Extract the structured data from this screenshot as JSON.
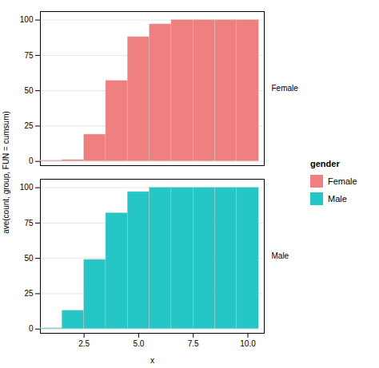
{
  "chart_data": {
    "type": "bar",
    "x": [
      1.0,
      2.0,
      3.0,
      4.0,
      5.0,
      6.0,
      7.0,
      8.0,
      9.0,
      10.0
    ],
    "series": [
      {
        "name": "Female",
        "color": "#F08080",
        "values": [
          0.5,
          1.0,
          19.0,
          57.0,
          88.0,
          97.0,
          100.0,
          100.0,
          100.0,
          100.0
        ]
      },
      {
        "name": "Male",
        "color": "#26C6C6",
        "values": [
          0.5,
          13.0,
          49.0,
          82.0,
          97.0,
          100.0,
          100.0,
          100.0,
          100.0,
          100.0
        ]
      }
    ],
    "xlabel": "x",
    "ylabel": "ave(count, group, FUN = cumsum)",
    "legend_title": "gender",
    "xlim": [
      0.5,
      10.75
    ],
    "xticks": [
      2.5,
      {
        "value": 5.0,
        "label": "5.0"
      },
      7.5,
      {
        "value": 10.0,
        "label": "10.0"
      }
    ],
    "ylim": [
      -3,
      106
    ],
    "yticks": [
      0,
      25,
      50,
      75,
      100
    ],
    "grid": true,
    "legend": "right"
  }
}
